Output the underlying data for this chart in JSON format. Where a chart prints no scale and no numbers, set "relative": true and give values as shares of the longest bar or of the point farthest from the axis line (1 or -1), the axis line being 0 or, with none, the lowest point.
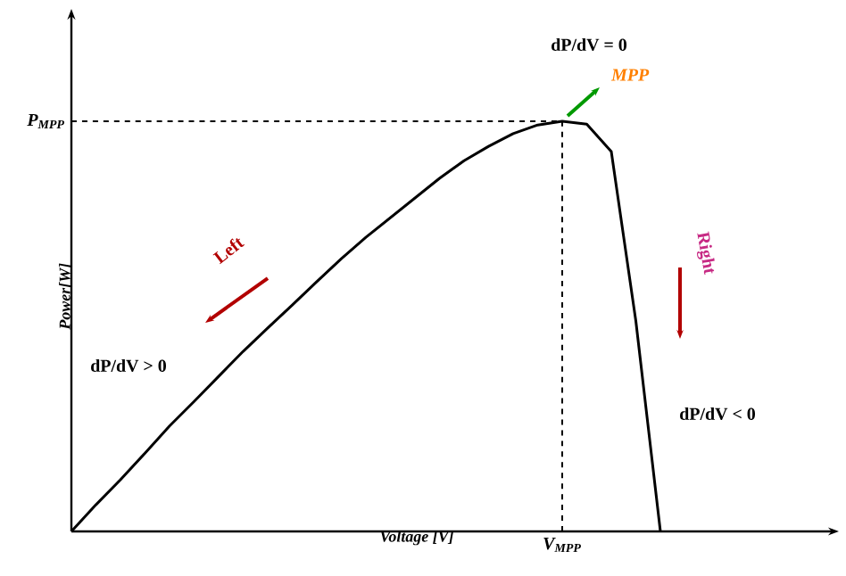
{
  "chart_data": {
    "type": "line",
    "relative": true,
    "xlabel": "Voltage [V]",
    "ylabel": "Power[W]",
    "categories": [
      null,
      null,
      null,
      null,
      null,
      null,
      null,
      null,
      null,
      null,
      null,
      null,
      null,
      null,
      null,
      null,
      null,
      null,
      null,
      null,
      null,
      null,
      null,
      null,
      null
    ],
    "series": [
      {
        "color": "#000000",
        "values": [
          0,
          0.065,
          0.126,
          0.191,
          0.257,
          0.317,
          0.378,
          0.439,
          0.496,
          0.552,
          0.609,
          0.665,
          0.717,
          0.765,
          0.813,
          0.861,
          0.904,
          0.939,
          0.97,
          0.991,
          1,
          0.993,
          0.926,
          0.513,
          0
        ]
      }
    ],
    "annotations": [
      "dP/dV = 0",
      "MPP",
      "Left",
      "Right",
      "dP/dV > 0",
      "dP/dV < 0",
      "P$_{MPP}$",
      "V$_{MPP}$"
    ]
  }
}
